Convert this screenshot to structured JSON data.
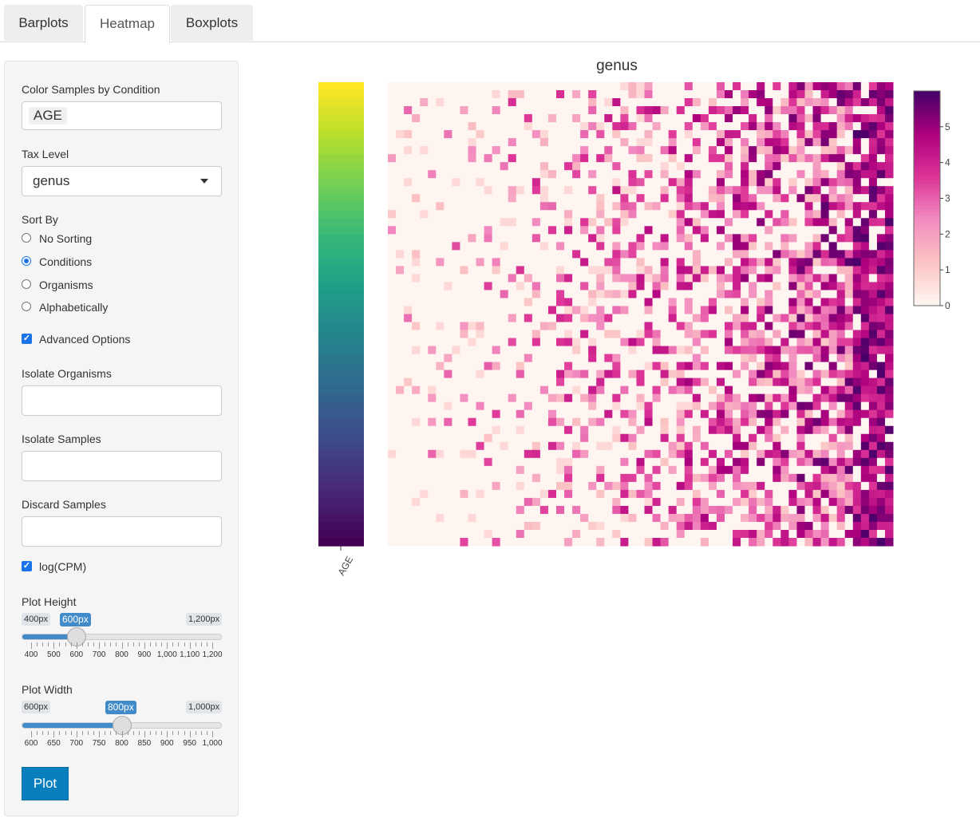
{
  "tabs": [
    {
      "label": "Barplots",
      "active": false
    },
    {
      "label": "Heatmap",
      "active": true
    },
    {
      "label": "Boxplots",
      "active": false
    }
  ],
  "sidebar": {
    "color_by_label": "Color Samples by Condition",
    "color_by_value": "AGE",
    "tax_level_label": "Tax Level",
    "tax_level_value": "genus",
    "sort_by_label": "Sort By",
    "sort_options": [
      {
        "label": "No Sorting",
        "selected": false
      },
      {
        "label": "Conditions",
        "selected": true
      },
      {
        "label": "Organisms",
        "selected": false
      },
      {
        "label": "Alphabetically",
        "selected": false
      }
    ],
    "advanced_options_label": "Advanced Options",
    "advanced_options_checked": true,
    "isolate_organisms_label": "Isolate Organisms",
    "isolate_organisms_value": "",
    "isolate_samples_label": "Isolate Samples",
    "isolate_samples_value": "",
    "discard_samples_label": "Discard Samples",
    "discard_samples_value": "",
    "log_cpm_label": "log(CPM)",
    "log_cpm_checked": true,
    "plot_height": {
      "label": "Plot Height",
      "min_label": "400px",
      "max_label": "1,200px",
      "value_label": "600px",
      "min": 400,
      "max": 1200,
      "value": 600,
      "ticks": [
        "400",
        "500",
        "600",
        "700",
        "800",
        "900",
        "1,000",
        "1,100",
        "1,200"
      ]
    },
    "plot_width": {
      "label": "Plot Width",
      "min_label": "600px",
      "max_label": "1,000px",
      "value_label": "800px",
      "min": 600,
      "max": 1000,
      "value": 800,
      "ticks": [
        "600",
        "650",
        "700",
        "750",
        "800",
        "850",
        "900",
        "950",
        "1,000"
      ]
    },
    "plot_button_label": "Plot"
  },
  "chart_data": {
    "type": "heatmap",
    "title": "genus",
    "condition_axis_label": "AGE",
    "condition_colorscale": "viridis",
    "colorbar_ticks": [
      "0",
      "1",
      "2",
      "3",
      "4",
      "5"
    ],
    "colorbar_range": [
      0,
      6
    ],
    "colorscale": [
      "#fff5f0",
      "#fbc3c3",
      "#f28bc0",
      "#dd3497",
      "#ae017e",
      "#49006a"
    ],
    "rows": 58,
    "columns": 63,
    "note_values": "cell values are log(CPM) ranging 0-6; individual cell values are not labeled"
  }
}
